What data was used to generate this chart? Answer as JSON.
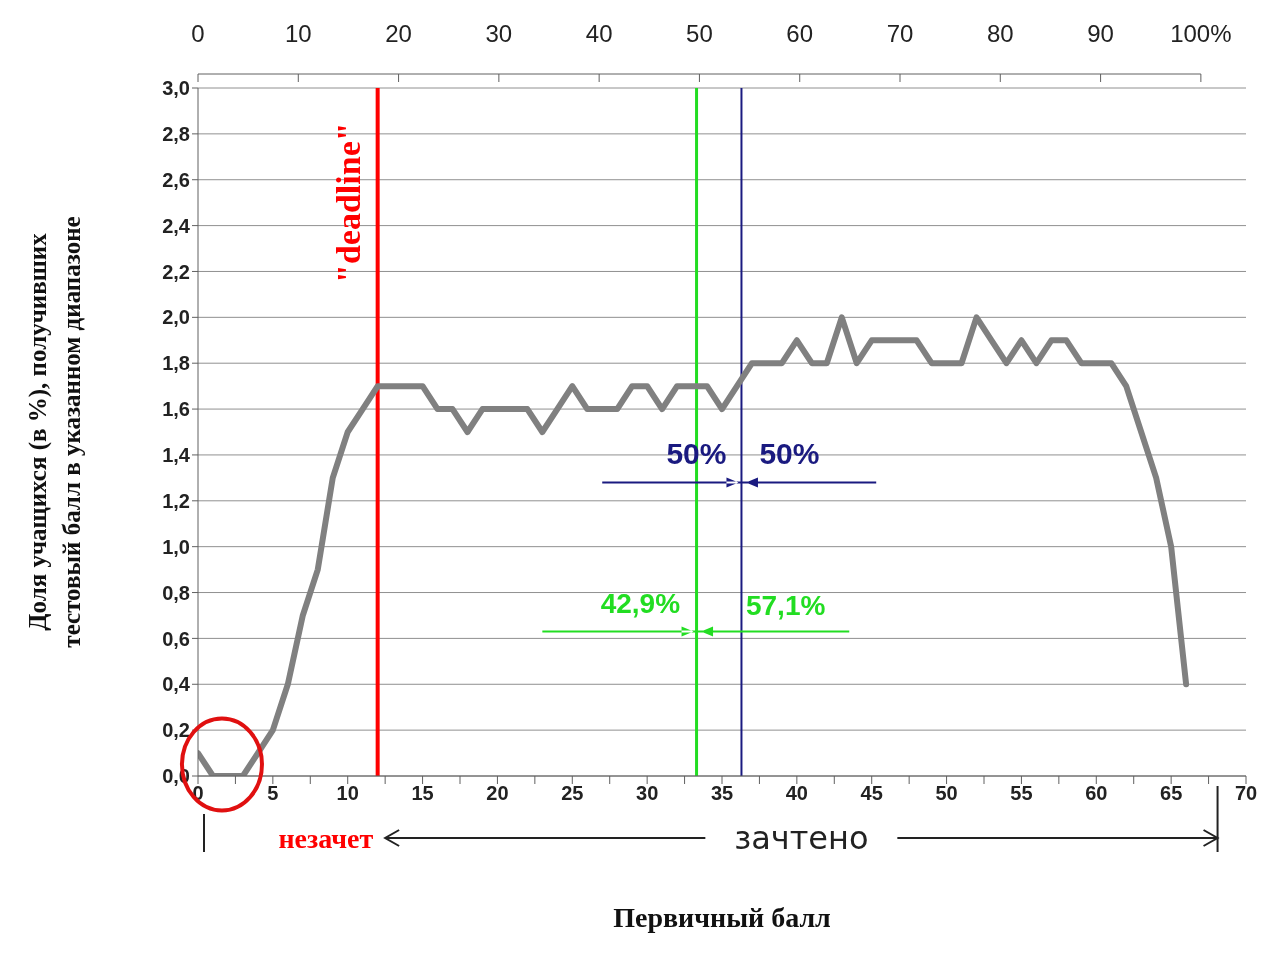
{
  "chart_data": {
    "type": "line",
    "xlabel": "Первичный балл",
    "ylabel": "Доля учащихся (в %), получивших\nтестовый балл  в указанном диапазоне",
    "x": [
      0,
      1,
      2,
      3,
      4,
      5,
      6,
      7,
      8,
      9,
      10,
      11,
      12,
      13,
      14,
      15,
      16,
      17,
      18,
      19,
      20,
      21,
      22,
      23,
      24,
      25,
      26,
      27,
      28,
      29,
      30,
      31,
      32,
      33,
      34,
      35,
      36,
      37,
      38,
      39,
      40,
      41,
      42,
      43,
      44,
      45,
      46,
      47,
      48,
      49,
      50,
      51,
      52,
      53,
      54,
      55,
      56,
      57,
      58,
      59,
      60,
      61,
      62,
      63,
      64,
      65,
      66
    ],
    "series": [
      {
        "color": "#808080",
        "values": [
          0.1,
          0,
          0,
          0,
          0.1,
          0.2,
          0.4,
          0.7,
          0.9,
          1.3,
          1.5,
          1.6,
          1.7,
          1.7,
          1.7,
          1.7,
          1.6,
          1.6,
          1.5,
          1.6,
          1.6,
          1.6,
          1.6,
          1.5,
          1.6,
          1.7,
          1.6,
          1.6,
          1.6,
          1.7,
          1.7,
          1.6,
          1.7,
          1.7,
          1.7,
          1.6,
          1.7,
          1.8,
          1.8,
          1.8,
          1.9,
          1.8,
          1.8,
          2.0,
          1.8,
          1.9,
          1.9,
          1.9,
          1.9,
          1.8,
          1.8,
          1.8,
          2.0,
          1.9,
          1.8,
          1.9,
          1.8,
          1.9,
          1.9,
          1.8,
          1.8,
          1.8,
          1.7,
          1.5,
          1.3,
          1.0,
          0.4
        ]
      }
    ],
    "xlim": [
      0,
      70
    ],
    "xticks": [
      0,
      {
        "value": 2.5,
        "label": null
      },
      5,
      {
        "value": 7.5,
        "label": null
      },
      10,
      {
        "value": 12.5,
        "label": null
      },
      15,
      {
        "value": 17.5,
        "label": null
      },
      20,
      {
        "value": 22.5,
        "label": null
      },
      25,
      {
        "value": 27.5,
        "label": null
      },
      30,
      {
        "value": 32.5,
        "label": null
      },
      35,
      {
        "value": 37.5,
        "label": null
      },
      40,
      {
        "value": 42.5,
        "label": null
      },
      45,
      {
        "value": 47.5,
        "label": null
      },
      50,
      {
        "value": 52.5,
        "label": null
      },
      55,
      {
        "value": 57.5,
        "label": null
      },
      60,
      {
        "value": 62.5,
        "label": null
      },
      65,
      {
        "value": 67.5,
        "label": null
      },
      70
    ],
    "x2lim": [
      0,
      104.5
    ],
    "x2ticks": [
      0,
      10,
      20,
      30,
      40,
      50,
      60,
      70,
      80,
      90,
      {
        "value": 100,
        "label": "100%"
      }
    ],
    "ylim": [
      0,
      3
    ],
    "yticks": [
      {
        "value": 0,
        "label": "0,0"
      },
      {
        "value": 0.2,
        "label": "0,2"
      },
      {
        "value": 0.4,
        "label": "0,4"
      },
      {
        "value": 0.6,
        "label": "0,6"
      },
      {
        "value": 0.8,
        "label": "0,8"
      },
      {
        "value": 1.0,
        "label": "1,0"
      },
      {
        "value": 1.2,
        "label": "1,2"
      },
      {
        "value": 1.4,
        "label": "1,4"
      },
      {
        "value": 1.6,
        "label": "1,6"
      },
      {
        "value": 1.8,
        "label": "1,8"
      },
      {
        "value": 2.0,
        "label": "2,0"
      },
      {
        "value": 2.2,
        "label": "2,2"
      },
      {
        "value": 2.4,
        "label": "2,4"
      },
      {
        "value": 2.6,
        "label": "2,6"
      },
      {
        "value": 2.8,
        "label": "2,8"
      },
      {
        "value": 3.0,
        "label": "3,0"
      }
    ],
    "grid": "y",
    "line_style": "solid",
    "marker": "none",
    "ref_lines": [
      {
        "axis": "x",
        "value": 12,
        "label": "\"deadline\"",
        "color": "#ff0000"
      },
      {
        "axis": "x",
        "value": 33.3,
        "color": "#22dd22"
      },
      {
        "axis": "x",
        "value": 36.3,
        "color": "#1a1a80"
      }
    ],
    "annotations": [
      "50%",
      "50%",
      "42,9%",
      "57,1%",
      "незачет",
      "зачтено"
    ]
  }
}
